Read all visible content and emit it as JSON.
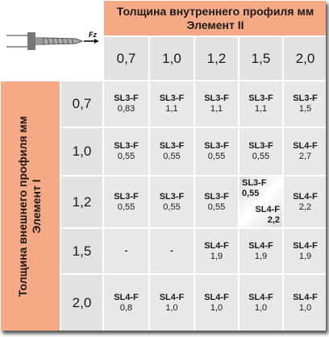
{
  "table": {
    "icon_label": "Fz",
    "column_title": [
      "Толщина внутреннего профиля мм",
      "Элемент II"
    ],
    "column_values": [
      "0,7",
      "1,0",
      "1,2",
      "1,5",
      "2,0"
    ],
    "row_title": [
      "Толщина внешнего профиля мм",
      "Элемент I"
    ],
    "row_values": [
      "0,7",
      "1,0",
      "1,2",
      "1,5",
      "2,0"
    ],
    "rows": [
      [
        [
          "SL3-F",
          "0,83"
        ],
        [
          "SL3-F",
          "1,1"
        ],
        [
          "SL3-F",
          "1,1"
        ],
        [
          "SL3-F",
          "1,1"
        ],
        [
          "SL3-F",
          "1,5"
        ]
      ],
      [
        [
          "SL3-F",
          "0,55"
        ],
        [
          "SL3-F",
          "0,55"
        ],
        [
          "SL3-F",
          "0,55"
        ],
        [
          "SL3-F",
          "0,55"
        ],
        [
          "SL4-F",
          "2,7"
        ]
      ],
      [
        [
          "SL3-F",
          "0,55"
        ],
        [
          "SL3-F",
          "0,55"
        ],
        [
          "SL3-F",
          "0,55"
        ],
        [
          [
            "SL3-F",
            "0,55"
          ],
          [
            "SL4-F",
            "2,2"
          ]
        ],
        [
          "SL4-F",
          "2,2"
        ]
      ],
      [
        [
          "-"
        ],
        [
          "-"
        ],
        [
          "SL4-F",
          "1,9"
        ],
        [
          "SL4-F",
          "1,9"
        ],
        [
          "SL4-F",
          "1,9"
        ]
      ],
      [
        [
          "SL4-F",
          "0,8"
        ],
        [
          "SL4-F",
          "1,0"
        ],
        [
          "SL4-F",
          "1,0"
        ],
        [
          "SL4-F",
          "1,0"
        ],
        [
          "SL4-F",
          "1,0"
        ]
      ]
    ]
  }
}
